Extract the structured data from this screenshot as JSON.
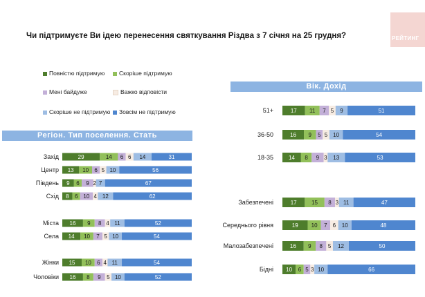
{
  "title": "Чи підтримуєте Ви ідею перенесення святкування Різдва з 7 січня на 25 грудня?",
  "logo_text": "РЕЙТИНГ",
  "legend": [
    {
      "label": "Повністю підтримую",
      "color": "#4e7d2c"
    },
    {
      "label": "Скоріше  підтримую",
      "color": "#92c05a"
    },
    {
      "label": "Мені байдуже",
      "color": "#c3b0d8"
    },
    {
      "label": "Важко відповісти",
      "color": "#f7ece3"
    },
    {
      "label": "Скоріше  не підтримую",
      "color": "#9ebde3"
    },
    {
      "label": "Зовсім не підтримую",
      "color": "#4f86cf"
    }
  ],
  "left_header": "Регіон. Тип поселення. Стать",
  "right_header": "Вік. Дохід",
  "chart_data": [
    {
      "type": "bar",
      "orientation": "horizontal",
      "stacked": true,
      "title": "Регіон. Тип поселення. Стать",
      "categories": [
        "Захід",
        "Центр",
        "Південь",
        "Схід",
        "Міста",
        "Села",
        "Жінки",
        "Чоловіки"
      ],
      "series": [
        {
          "name": "Повністю підтримую",
          "values": [
            29,
            13,
            9,
            8,
            16,
            14,
            15,
            16
          ]
        },
        {
          "name": "Скоріше  підтримую",
          "values": [
            14,
            10,
            6,
            6,
            9,
            10,
            10,
            8
          ]
        },
        {
          "name": "Мені байдуже",
          "values": [
            6,
            6,
            9,
            10,
            8,
            7,
            6,
            9
          ]
        },
        {
          "name": "Важко відповісти",
          "values": [
            6,
            5,
            2,
            4,
            4,
            5,
            4,
            5
          ]
        },
        {
          "name": "Скоріше  не підтримую",
          "values": [
            14,
            10,
            7,
            12,
            11,
            10,
            11,
            10
          ]
        },
        {
          "name": "Зовсім не підтримую",
          "values": [
            31,
            56,
            67,
            62,
            52,
            54,
            54,
            52
          ]
        }
      ],
      "xlim": [
        0,
        100
      ]
    },
    {
      "type": "bar",
      "orientation": "horizontal",
      "stacked": true,
      "title": "Вік. Дохід",
      "categories": [
        "51+",
        "36-50",
        "18-35",
        "Забезпечені",
        "Середнього рівня",
        "Малозабезпечені",
        "Бідні"
      ],
      "series": [
        {
          "name": "Повністю підтримую",
          "values": [
            17,
            16,
            14,
            17,
            19,
            16,
            10
          ]
        },
        {
          "name": "Скоріше  підтримую",
          "values": [
            11,
            9,
            8,
            15,
            10,
            9,
            6
          ]
        },
        {
          "name": "Мені байдуже",
          "values": [
            7,
            5,
            9,
            8,
            7,
            8,
            5
          ]
        },
        {
          "name": "Важко відповісти",
          "values": [
            5,
            5,
            3,
            3,
            6,
            5,
            3
          ]
        },
        {
          "name": "Скоріше  не підтримую",
          "values": [
            9,
            10,
            13,
            11,
            10,
            12,
            10
          ]
        },
        {
          "name": "Зовсім не підтримую",
          "values": [
            51,
            54,
            53,
            47,
            48,
            50,
            66
          ]
        }
      ],
      "xlim": [
        0,
        100
      ]
    }
  ]
}
